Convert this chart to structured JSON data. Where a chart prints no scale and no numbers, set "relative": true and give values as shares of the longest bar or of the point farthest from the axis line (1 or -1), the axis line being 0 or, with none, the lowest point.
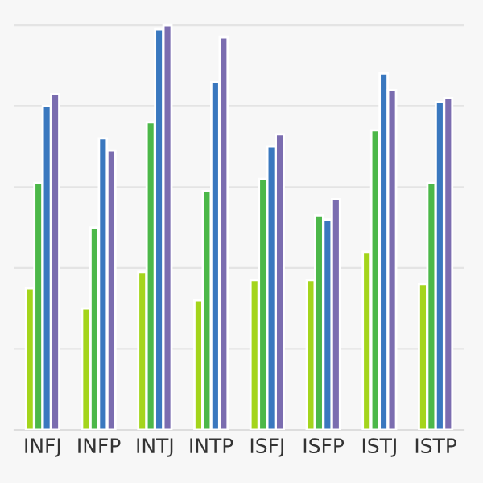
{
  "chart_data": {
    "type": "bar",
    "relative": true,
    "grid": "y",
    "categories": [
      "INFJ",
      "INFP",
      "INTJ",
      "INTP",
      "ISFJ",
      "ISFP",
      "ISTJ",
      "ISTP"
    ],
    "series": [
      {
        "color": "#a4d51c",
        "values": [
          0.35,
          0.3,
          0.39,
          0.32,
          0.37,
          0.37,
          0.44,
          0.36
        ]
      },
      {
        "color": "#4cb849",
        "values": [
          0.61,
          0.5,
          0.76,
          0.59,
          0.62,
          0.53,
          0.74,
          0.61
        ]
      },
      {
        "color": "#3a78bf",
        "values": [
          0.8,
          0.72,
          0.99,
          0.86,
          0.7,
          0.52,
          0.88,
          0.81
        ]
      },
      {
        "color": "#7b6db0",
        "values": [
          0.83,
          0.69,
          1,
          0.97,
          0.73,
          0.57,
          0.84,
          0.82
        ]
      }
    ]
  }
}
